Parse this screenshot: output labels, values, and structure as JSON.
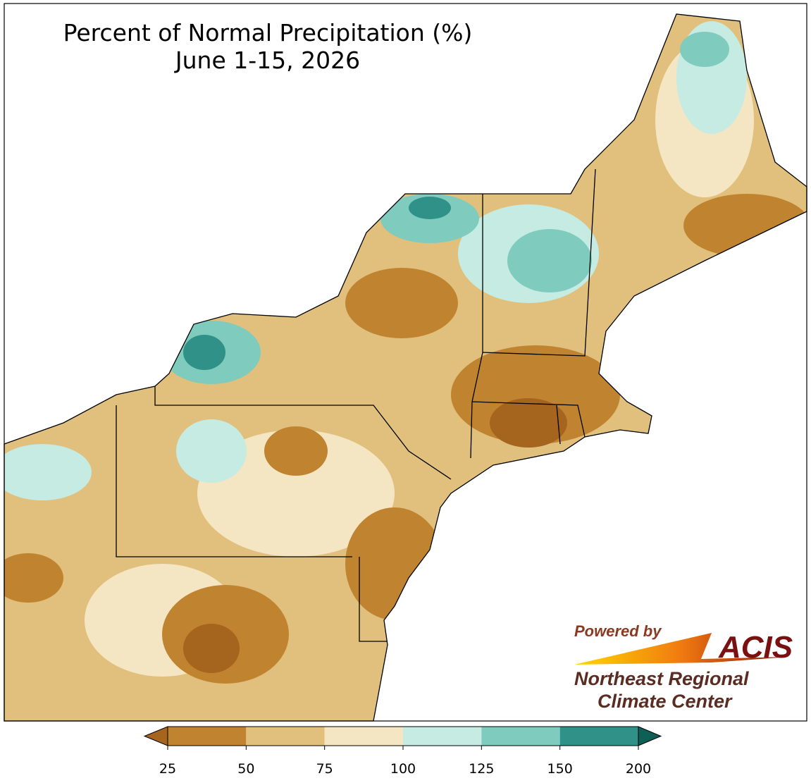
{
  "map": {
    "title": "Percent of Normal Precipitation (%)",
    "subtitle": "June 1-15, 2026"
  },
  "legend": {
    "ticks": [
      25,
      50,
      75,
      100,
      125,
      150,
      200
    ],
    "colors": [
      "#c08430",
      "#e0c07c",
      "#f5e6c3",
      "#c5ebe3",
      "#7fcbbd",
      "#2f9188"
    ],
    "under_color": "#a5651e",
    "over_color": "#0e5f55"
  },
  "logo": {
    "powered": "Powered by",
    "name": "ACIS",
    "line1": "Northeast Regional",
    "line2": "Climate Center"
  }
}
